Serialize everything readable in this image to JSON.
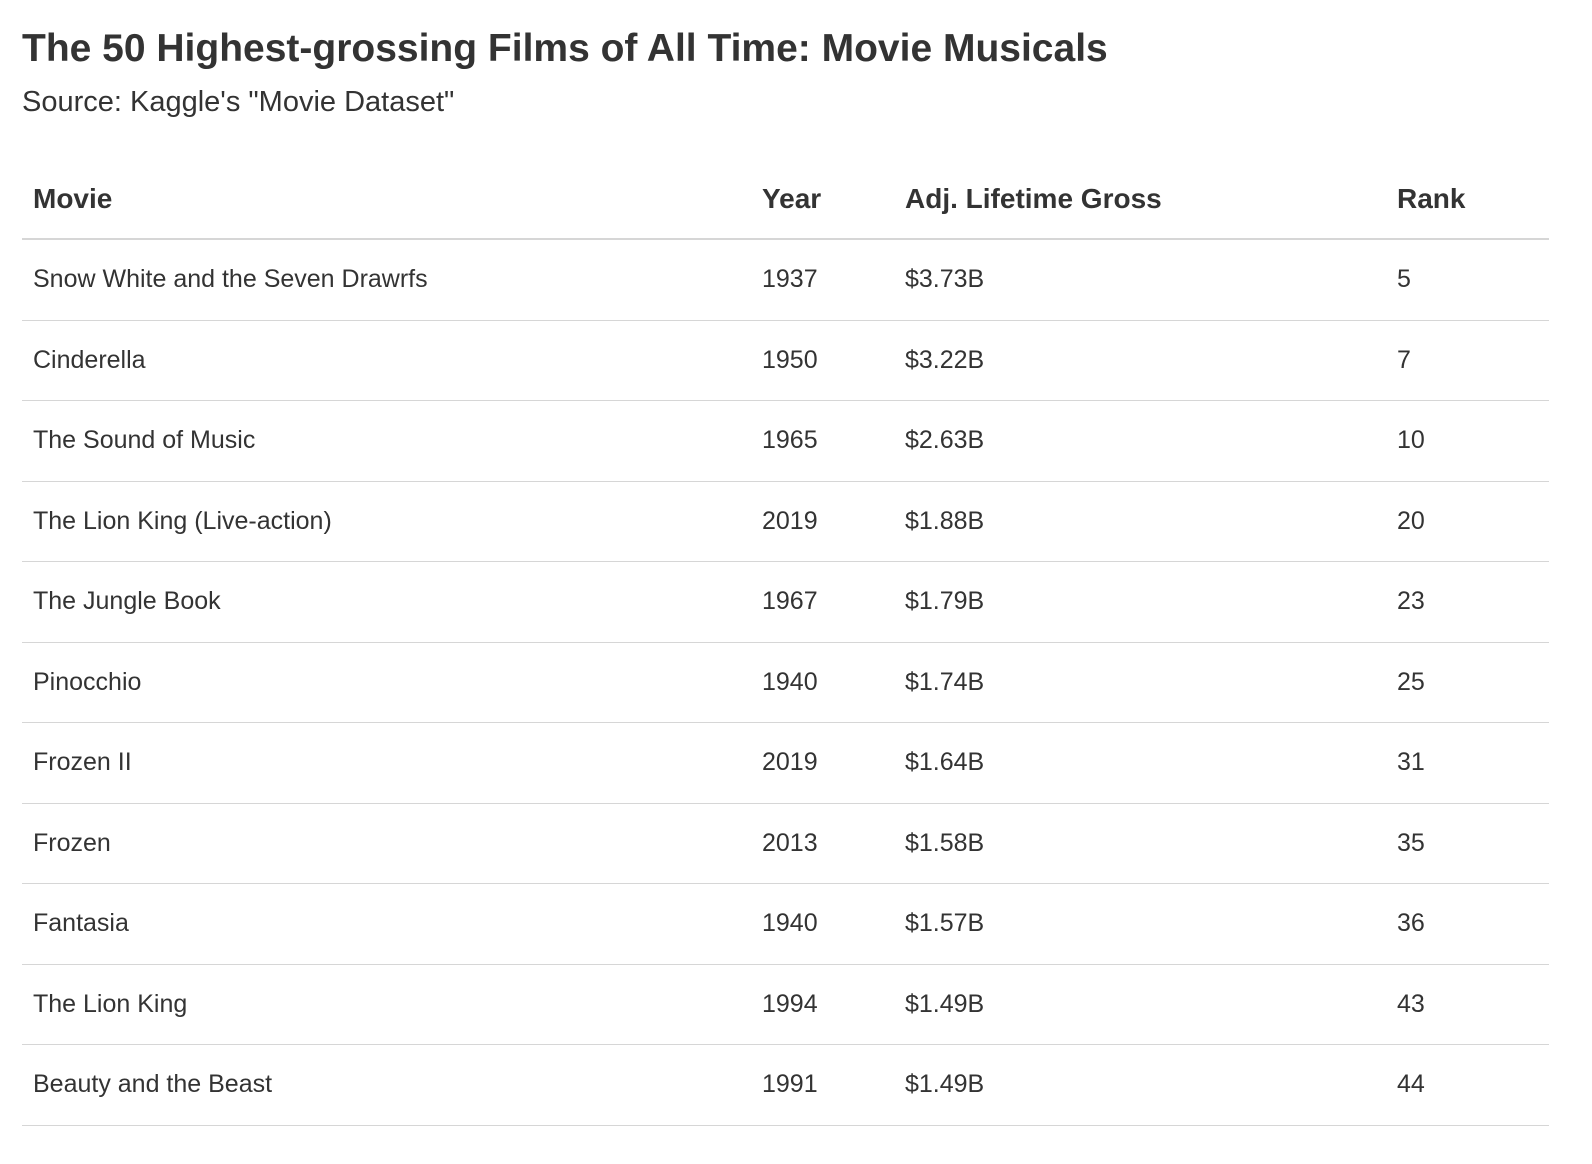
{
  "chart_data": {
    "type": "table",
    "title": "The 50 Highest-grossing Films of All Time: Movie Musicals",
    "subtitle": "Source: Kaggle's \"Movie Dataset\"",
    "columns": [
      "Movie",
      "Year",
      "Adj. Lifetime Gross",
      "Rank"
    ],
    "rows": [
      [
        "Snow White and the Seven Drawrfs",
        "1937",
        "$3.73B",
        "5"
      ],
      [
        "Cinderella",
        "1950",
        "$3.22B",
        "7"
      ],
      [
        "The Sound of Music",
        "1965",
        "$2.63B",
        "10"
      ],
      [
        "The Lion King (Live-action)",
        "2019",
        "$1.88B",
        "20"
      ],
      [
        "The Jungle Book",
        "1967",
        "$1.79B",
        "23"
      ],
      [
        "Pinocchio",
        "1940",
        "$1.74B",
        "25"
      ],
      [
        "Frozen II",
        "2019",
        "$1.64B",
        "31"
      ],
      [
        "Frozen",
        "2013",
        "$1.58B",
        "35"
      ],
      [
        "Fantasia",
        "1940",
        "$1.57B",
        "36"
      ],
      [
        "The Lion King",
        "1994",
        "$1.49B",
        "43"
      ],
      [
        "Beauty and the Beast",
        "1991",
        "$1.49B",
        "44"
      ]
    ]
  }
}
